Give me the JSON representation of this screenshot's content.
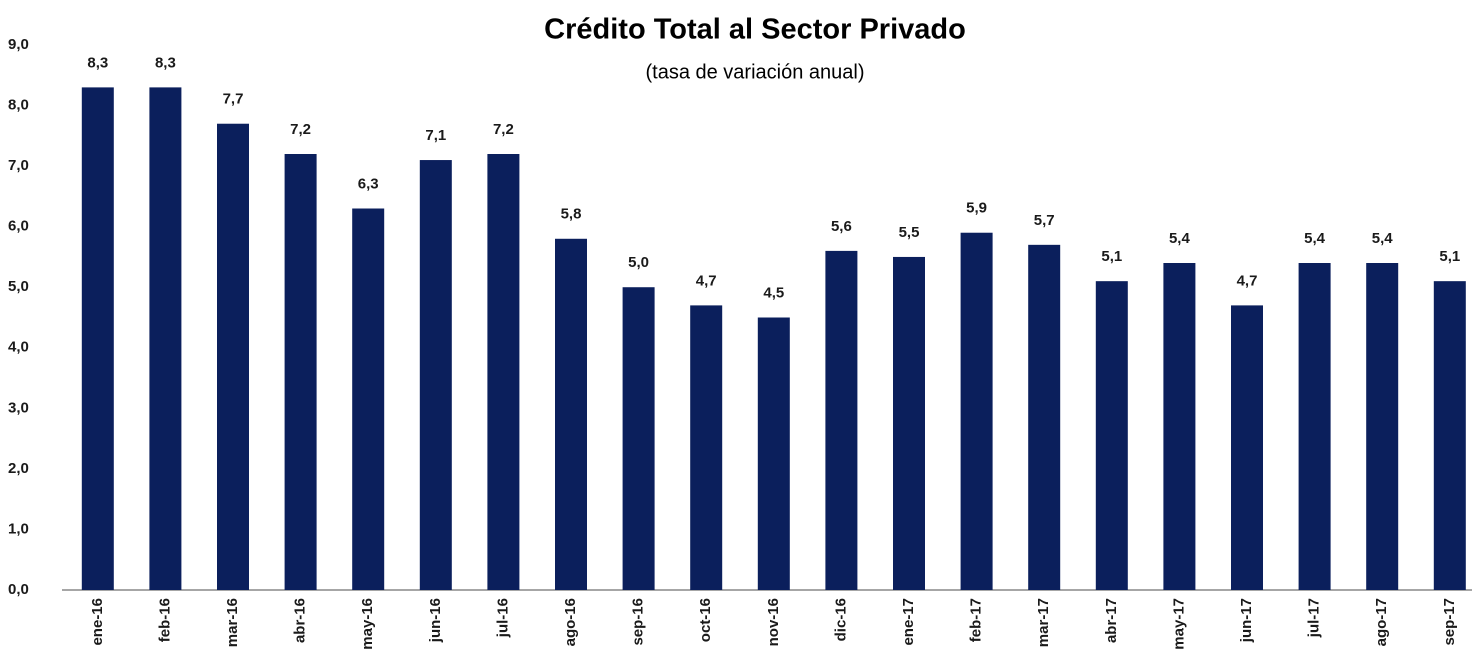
{
  "chart_data": {
    "type": "bar",
    "title": "Crédito Total al Sector Privado",
    "subtitle": "(tasa de variación anual)",
    "categories": [
      "ene-16",
      "feb-16",
      "mar-16",
      "abr-16",
      "may-16",
      "jun-16",
      "jul-16",
      "ago-16",
      "sep-16",
      "oct-16",
      "nov-16",
      "dic-16",
      "ene-17",
      "feb-17",
      "mar-17",
      "abr-17",
      "may-17",
      "jun-17",
      "jul-17",
      "ago-17",
      "sep-17"
    ],
    "values": [
      8.3,
      8.3,
      7.7,
      7.2,
      6.3,
      7.1,
      7.2,
      5.8,
      5.0,
      4.7,
      4.5,
      5.6,
      5.5,
      5.9,
      5.7,
      5.1,
      5.4,
      4.7,
      5.4,
      5.4,
      5.1
    ],
    "value_labels": [
      "8,3",
      "8,3",
      "7,7",
      "7,2",
      "6,3",
      "7,1",
      "7,2",
      "5,8",
      "5,0",
      "4,7",
      "4,5",
      "5,6",
      "5,5",
      "5,9",
      "5,7",
      "5,1",
      "5,4",
      "4,7",
      "5,4",
      "5,4",
      "5,1"
    ],
    "color": "#0b1f5c",
    "ylim": [
      0,
      9
    ],
    "yticks": [
      {
        "value": 0,
        "label": "0,0"
      },
      {
        "value": 1,
        "label": "1,0"
      },
      {
        "value": 2,
        "label": "2,0"
      },
      {
        "value": 3,
        "label": "3,0"
      },
      {
        "value": 4,
        "label": "4,0"
      },
      {
        "value": 5,
        "label": "5,0"
      },
      {
        "value": 6,
        "label": "6,0"
      },
      {
        "value": 7,
        "label": "7,0"
      },
      {
        "value": 8,
        "label": "8,0"
      },
      {
        "value": 9,
        "label": "9,0"
      }
    ],
    "grid": false
  }
}
